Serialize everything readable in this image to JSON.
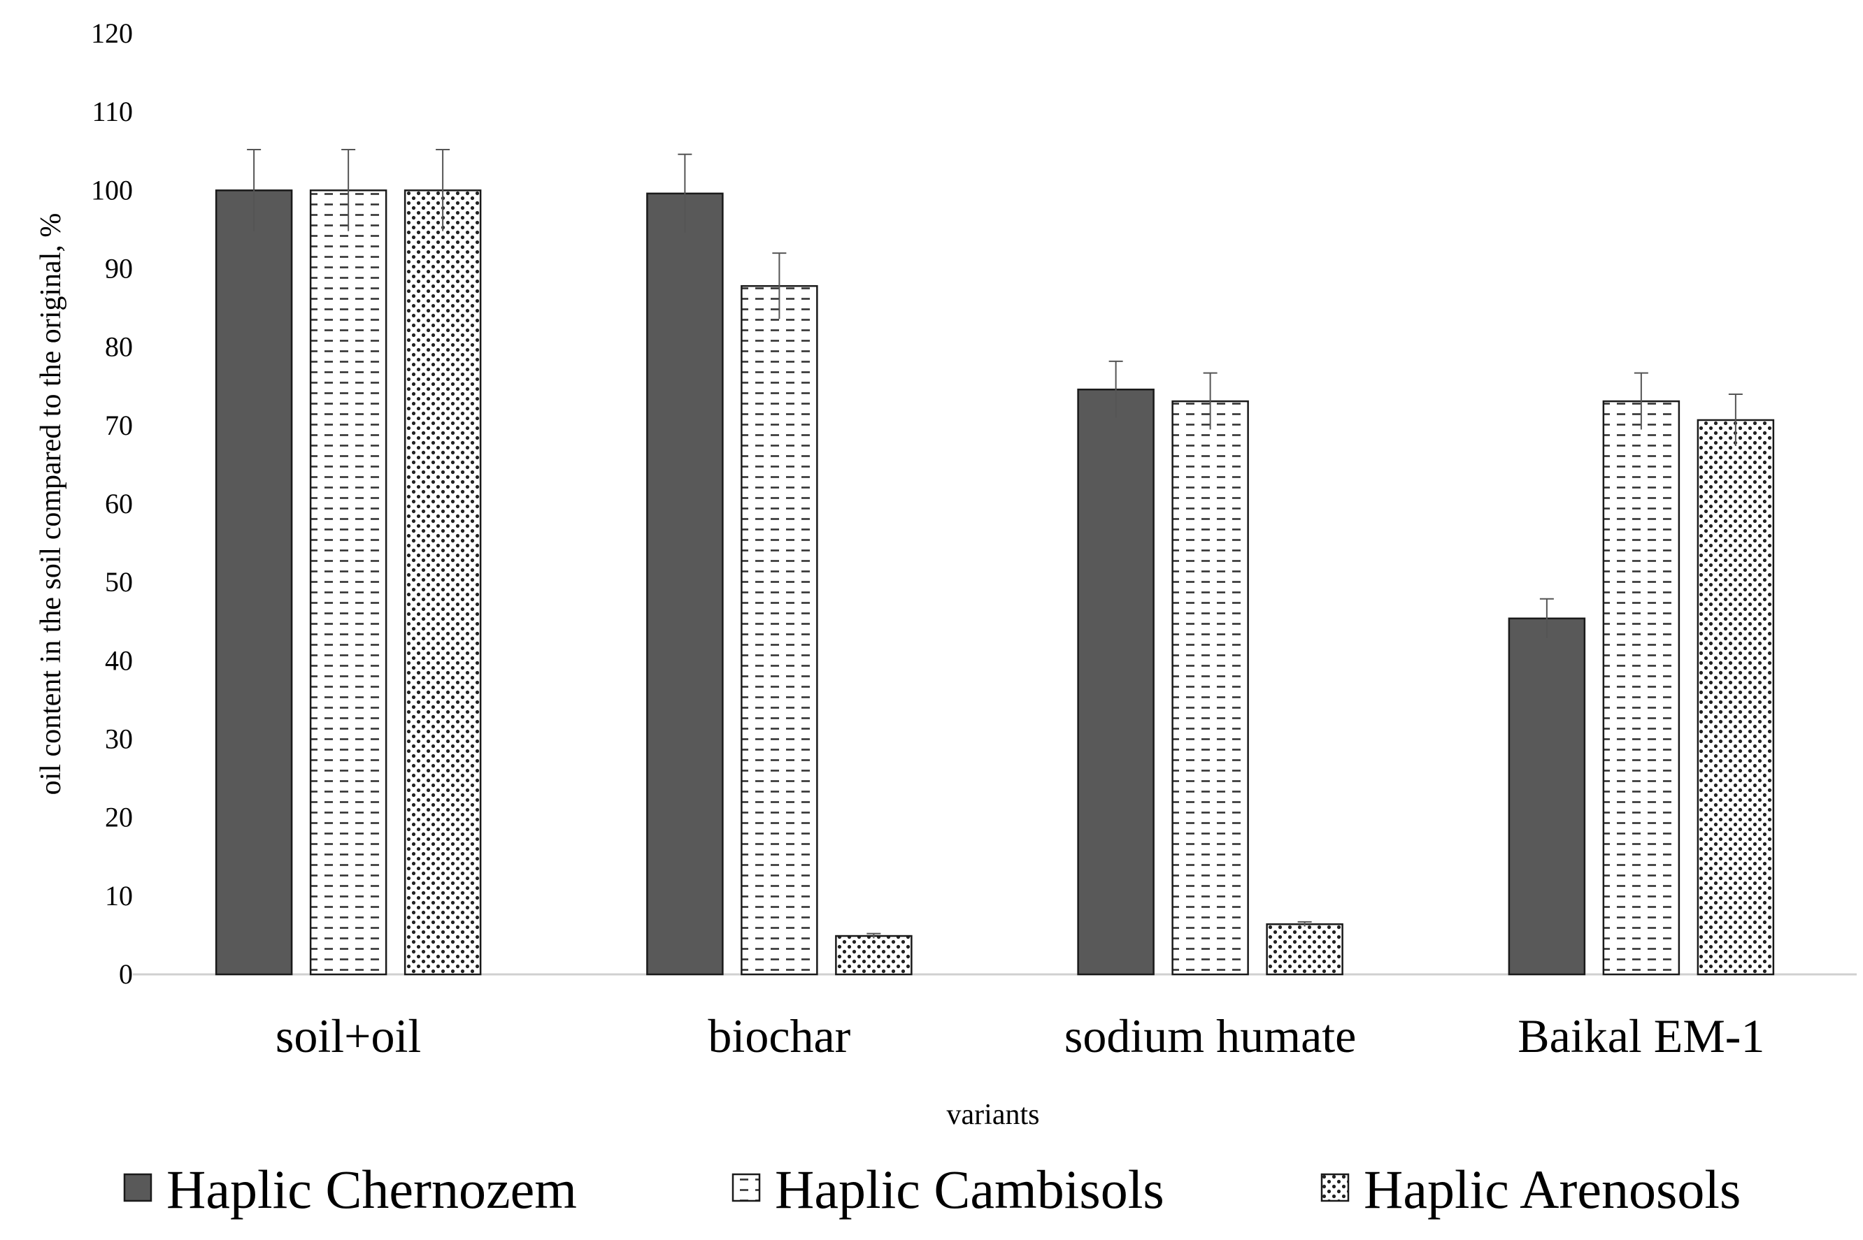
{
  "chart_data": {
    "type": "bar",
    "title": "",
    "xlabel": "variants",
    "ylabel": "oil content in the soil compared to the original, %",
    "ylim": [
      0,
      120
    ],
    "yticks": [
      0,
      10,
      20,
      30,
      40,
      50,
      60,
      70,
      80,
      90,
      100,
      110,
      120
    ],
    "grid": false,
    "legend_position": "bottom",
    "categories": [
      "soil+oil",
      "biochar",
      "sodium humate",
      "Baikal EM-1"
    ],
    "series": [
      {
        "name": "Haplic Chernozem",
        "pattern": "solid",
        "color": "#595959",
        "values": [
          100,
          99.6,
          74.6,
          45.4
        ],
        "errors": [
          5.2,
          5.0,
          3.6,
          2.5
        ]
      },
      {
        "name": "Haplic Cambisols",
        "pattern": "dashes",
        "color": "#ffffff",
        "values": [
          100,
          87.8,
          73.1,
          73.1
        ],
        "errors": [
          5.2,
          4.2,
          3.6,
          3.6
        ]
      },
      {
        "name": "Haplic Arenosols",
        "pattern": "dots",
        "color": "#ffffff",
        "values": [
          100,
          4.9,
          6.4,
          70.7
        ],
        "errors": [
          5.2,
          0.3,
          0.3,
          3.3
        ]
      }
    ]
  }
}
